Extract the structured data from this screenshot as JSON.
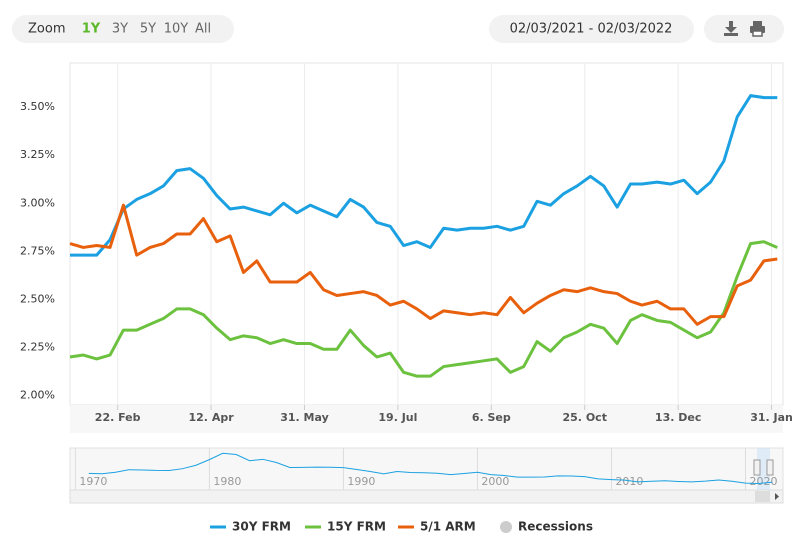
{
  "chart_data": {
    "type": "line",
    "range_selector": {
      "zoom_label": "Zoom",
      "ranges": [
        "1Y",
        "3Y",
        "5Y",
        "10Y",
        "All"
      ],
      "selected": 0,
      "selected_color": "#5cb82b",
      "date_range": "02/03/2021 - 02/03/2022"
    },
    "x": [
      "2021-01-28",
      "2021-02-04",
      "2021-02-11",
      "2021-02-18",
      "2021-02-25",
      "2021-03-04",
      "2021-03-11",
      "2021-03-18",
      "2021-03-25",
      "2021-04-01",
      "2021-04-08",
      "2021-04-15",
      "2021-04-22",
      "2021-04-29",
      "2021-05-06",
      "2021-05-13",
      "2021-05-20",
      "2021-05-27",
      "2021-06-03",
      "2021-06-10",
      "2021-06-17",
      "2021-06-24",
      "2021-07-01",
      "2021-07-08",
      "2021-07-15",
      "2021-07-22",
      "2021-07-29",
      "2021-08-05",
      "2021-08-12",
      "2021-08-19",
      "2021-08-26",
      "2021-09-02",
      "2021-09-09",
      "2021-09-16",
      "2021-09-23",
      "2021-09-30",
      "2021-10-07",
      "2021-10-14",
      "2021-10-21",
      "2021-10-28",
      "2021-11-04",
      "2021-11-11",
      "2021-11-18",
      "2021-11-24",
      "2021-12-02",
      "2021-12-09",
      "2021-12-16",
      "2021-12-23",
      "2021-12-30",
      "2022-01-06",
      "2022-01-13",
      "2022-01-20",
      "2022-01-27",
      "2022-02-03"
    ],
    "series": [
      {
        "name": "30Y FRM",
        "color": "#1ba1e2",
        "values": [
          2.73,
          2.73,
          2.73,
          2.81,
          2.97,
          3.02,
          3.05,
          3.09,
          3.17,
          3.18,
          3.13,
          3.04,
          2.97,
          2.98,
          2.96,
          2.94,
          3.0,
          2.95,
          2.99,
          2.96,
          2.93,
          3.02,
          2.98,
          2.9,
          2.88,
          2.78,
          2.8,
          2.77,
          2.87,
          2.86,
          2.87,
          2.87,
          2.88,
          2.86,
          2.88,
          3.01,
          2.99,
          3.05,
          3.09,
          3.14,
          3.09,
          2.98,
          3.1,
          3.1,
          3.11,
          3.1,
          3.12,
          3.05,
          3.11,
          3.22,
          3.45,
          3.56,
          3.55,
          3.55
        ]
      },
      {
        "name": "15Y FRM",
        "color": "#6cc23f",
        "values": [
          2.2,
          2.21,
          2.19,
          2.21,
          2.34,
          2.34,
          2.37,
          2.4,
          2.45,
          2.45,
          2.42,
          2.35,
          2.29,
          2.31,
          2.3,
          2.27,
          2.29,
          2.27,
          2.27,
          2.24,
          2.24,
          2.34,
          2.26,
          2.2,
          2.22,
          2.12,
          2.1,
          2.1,
          2.15,
          2.16,
          2.17,
          2.18,
          2.19,
          2.12,
          2.15,
          2.28,
          2.23,
          2.3,
          2.33,
          2.37,
          2.35,
          2.27,
          2.39,
          2.42,
          2.39,
          2.38,
          2.34,
          2.3,
          2.33,
          2.43,
          2.62,
          2.79,
          2.8,
          2.77
        ]
      },
      {
        "name": "5/1 ARM",
        "color": "#e8600c",
        "values": [
          2.79,
          2.77,
          2.78,
          2.77,
          2.99,
          2.73,
          2.77,
          2.79,
          2.84,
          2.84,
          2.92,
          2.8,
          2.83,
          2.64,
          2.7,
          2.59,
          2.59,
          2.59,
          2.64,
          2.55,
          2.52,
          2.53,
          2.54,
          2.52,
          2.47,
          2.49,
          2.45,
          2.4,
          2.44,
          2.43,
          2.42,
          2.43,
          2.42,
          2.51,
          2.43,
          2.48,
          2.52,
          2.55,
          2.54,
          2.56,
          2.54,
          2.53,
          2.49,
          2.47,
          2.49,
          2.45,
          2.45,
          2.37,
          2.41,
          2.41,
          2.57,
          2.6,
          2.7,
          2.71
        ]
      }
    ],
    "recessions": {
      "name": "Recessions",
      "color": "#cccccc"
    },
    "xlim": [
      "2021-01-28",
      "2022-02-06"
    ],
    "xticks": [
      {
        "value": "2021-02-22",
        "label": "22. Feb"
      },
      {
        "value": "2021-04-12",
        "label": "12. Apr"
      },
      {
        "value": "2021-05-31",
        "label": "31. May"
      },
      {
        "value": "2021-07-19",
        "label": "19. Jul"
      },
      {
        "value": "2021-09-06",
        "label": "6. Sep"
      },
      {
        "value": "2021-10-25",
        "label": "25. Oct"
      },
      {
        "value": "2021-12-13",
        "label": "13. Dec"
      },
      {
        "value": "2022-01-31",
        "label": "31. Jan"
      }
    ],
    "ylim": [
      1.95,
      3.73
    ],
    "yticks": [
      {
        "value": 2.0,
        "label": "2.00%"
      },
      {
        "value": 2.25,
        "label": "2.25%"
      },
      {
        "value": 2.5,
        "label": "2.50%"
      },
      {
        "value": 2.75,
        "label": "2.75%"
      },
      {
        "value": 3.0,
        "label": "3.00%"
      },
      {
        "value": 3.25,
        "label": "3.25%"
      },
      {
        "value": 3.5,
        "label": "3.50%"
      }
    ],
    "xgrid": true,
    "ygrid": false,
    "navigator": {
      "color": "#1ba1e2",
      "x": [
        1971,
        1972,
        1973,
        1974,
        1975,
        1976,
        1977,
        1978,
        1979,
        1980,
        1981,
        1982,
        1983,
        1984,
        1985,
        1986,
        1987,
        1988,
        1989,
        1990,
        1991,
        1992,
        1993,
        1994,
        1995,
        1996,
        1997,
        1998,
        1999,
        2000,
        2001,
        2002,
        2003,
        2004,
        2005,
        2006,
        2007,
        2008,
        2009,
        2010,
        2011,
        2012,
        2013,
        2014,
        2015,
        2016,
        2017,
        2018,
        2019,
        2020,
        2021,
        2022
      ],
      "values": [
        7.54,
        7.38,
        8.04,
        9.19,
        9.05,
        8.87,
        8.85,
        9.64,
        11.2,
        13.74,
        16.63,
        16.04,
        13.24,
        13.88,
        12.43,
        10.19,
        10.21,
        10.34,
        10.32,
        10.13,
        9.25,
        8.39,
        7.31,
        8.38,
        7.93,
        7.81,
        7.6,
        6.94,
        7.44,
        8.05,
        6.97,
        6.54,
        5.83,
        5.84,
        5.87,
        6.41,
        6.34,
        6.03,
        5.04,
        4.69,
        4.45,
        3.66,
        3.98,
        4.17,
        3.85,
        3.65,
        3.99,
        4.54,
        3.94,
        3.11,
        2.96,
        3.5
      ],
      "xlim": [
        1969.6,
        2022.8
      ],
      "ylim": [
        0,
        19
      ],
      "xticks": [
        1970,
        1980,
        1990,
        2000,
        2010,
        2020
      ]
    }
  }
}
